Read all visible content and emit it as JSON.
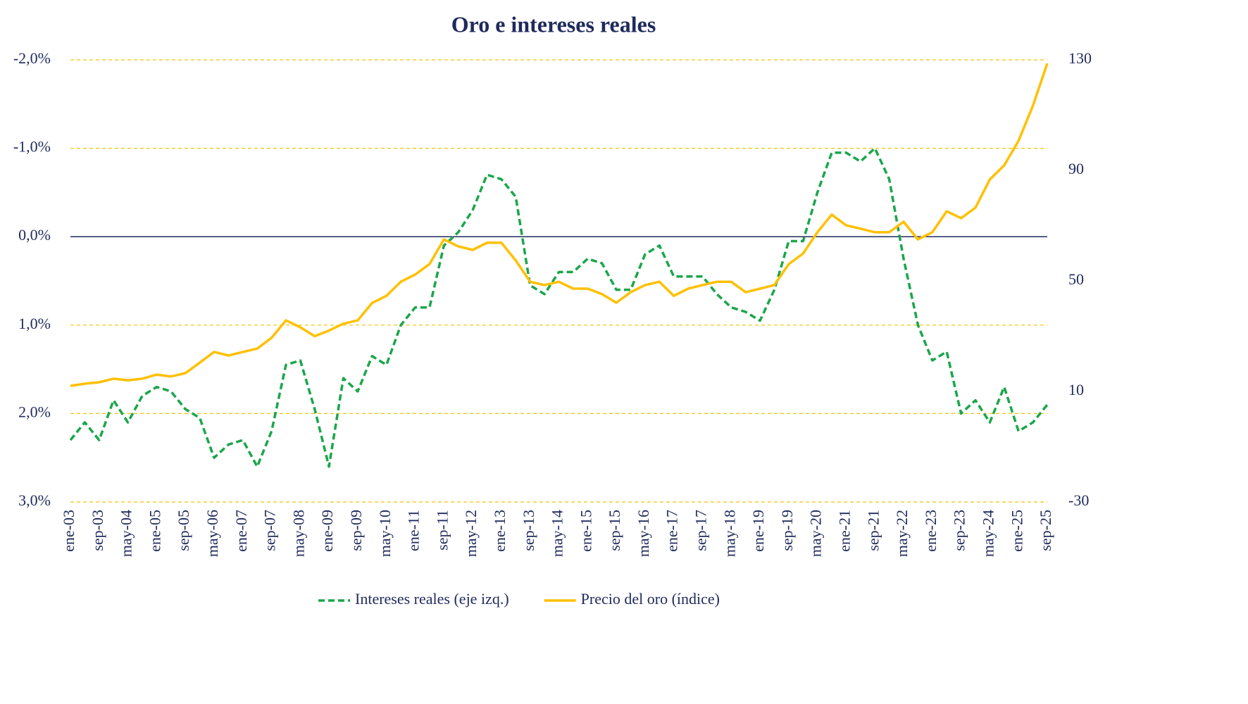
{
  "chart_data": {
    "type": "line",
    "title": "Oro e intereses reales",
    "categories": [
      "ene-03",
      null,
      "sep-03",
      null,
      "may-04",
      null,
      "ene-05",
      null,
      "sep-05",
      null,
      "may-06",
      null,
      "ene-07",
      null,
      "sep-07",
      null,
      "may-08",
      null,
      "ene-09",
      null,
      "sep-09",
      null,
      "may-10",
      null,
      "ene-11",
      null,
      "sep-11",
      null,
      "may-12",
      null,
      "ene-13",
      null,
      "sep-13",
      null,
      "may-14",
      null,
      "ene-15",
      null,
      "sep-15",
      null,
      "may-16",
      null,
      "ene-17",
      null,
      "sep-17",
      null,
      "may-18",
      null,
      "ene-19",
      null,
      "sep-19",
      null,
      "may-20",
      null,
      "ene-21",
      null,
      "sep-21",
      null,
      "may-22",
      null,
      "ene-23",
      null,
      "sep-23",
      null,
      "may-24",
      null,
      "ene-25",
      null,
      "sep-25"
    ],
    "series": [
      {
        "name": "Intereses reales (eje izq.)",
        "color": "#1aa64a",
        "dashed": true,
        "axis": "y",
        "values": [
          2.3,
          2.1,
          2.3,
          1.85,
          2.1,
          1.8,
          1.7,
          1.75,
          1.95,
          2.05,
          2.5,
          2.35,
          2.3,
          2.6,
          2.2,
          1.45,
          1.4,
          1.95,
          2.6,
          1.6,
          1.75,
          1.35,
          1.45,
          1.0,
          0.8,
          0.8,
          0.1,
          -0.05,
          -0.3,
          -0.7,
          -0.65,
          -0.45,
          0.55,
          0.65,
          0.4,
          0.4,
          0.25,
          0.3,
          0.6,
          0.6,
          0.2,
          0.1,
          0.45,
          0.45,
          0.45,
          0.65,
          0.8,
          0.85,
          0.95,
          0.6,
          0.05,
          0.05,
          -0.5,
          -0.95,
          -0.95,
          -0.85,
          -1.0,
          -0.65,
          0.25,
          1.0,
          1.4,
          1.3,
          2.0,
          1.85,
          2.1,
          1.7,
          2.2,
          2.1,
          1.9
        ]
      },
      {
        "name": "Precio del oro (índice)",
        "color": "#ffc000",
        "dashed": false,
        "axis": "y2",
        "values": [
          12.0,
          12.8,
          13.3,
          14.6,
          14,
          14.6,
          16.1,
          15.4,
          16.6,
          20.4,
          24.3,
          23,
          24.3,
          25.5,
          29.4,
          35.7,
          33.2,
          30,
          32,
          34.5,
          35.7,
          42,
          44.6,
          49.7,
          52.3,
          56.1,
          65,
          62.5,
          61.2,
          63.8,
          63.8,
          57.4,
          49.7,
          48.5,
          49.7,
          47.2,
          47.2,
          45.2,
          42.1,
          45.9,
          48.5,
          49.7,
          44.6,
          47.2,
          48.5,
          49.7,
          49.7,
          45.9,
          47.2,
          48.5,
          56.1,
          59.9,
          67.6,
          74,
          70.1,
          68.9,
          67.6,
          67.6,
          71.4,
          65,
          67.6,
          75.2,
          72.7,
          76.5,
          86.7,
          91.8,
          100.7,
          113.4,
          128.7
        ]
      }
    ],
    "ylim": [
      -2,
      3
    ],
    "y_inverted": true,
    "yticks": [
      {
        "value": -2,
        "label": "-2,0%"
      },
      {
        "value": -1,
        "label": "-1,0%"
      },
      {
        "value": 0,
        "label": "0,0%"
      },
      {
        "value": 1,
        "label": "1,0%"
      },
      {
        "value": 2,
        "label": "2,0%"
      },
      {
        "value": 3,
        "label": "3,0%"
      }
    ],
    "y2lim": [
      -30,
      130
    ],
    "y2ticks": [
      130,
      90,
      50,
      10,
      -30
    ],
    "grid": true,
    "legend": "bottom"
  }
}
